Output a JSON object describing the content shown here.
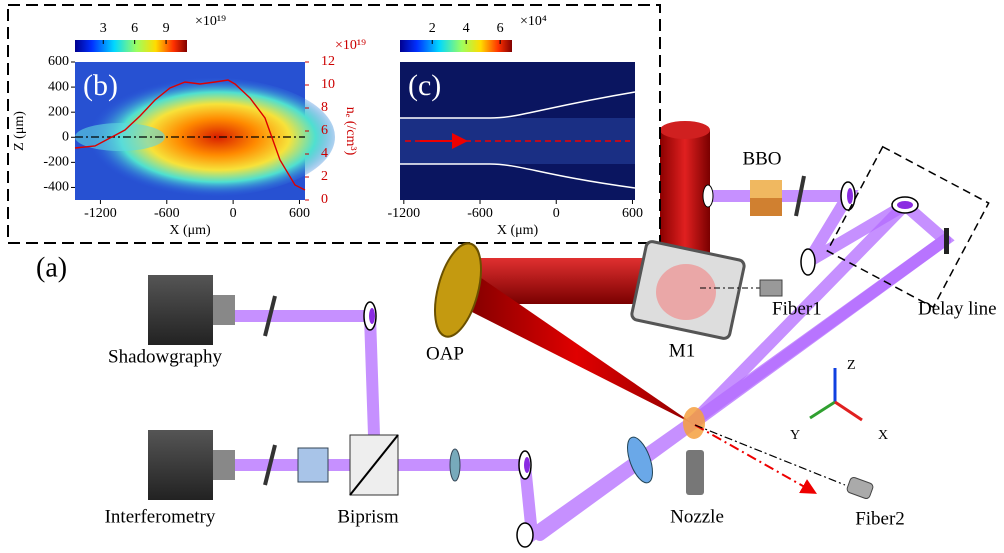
{
  "panel_b": {
    "label": "(b)",
    "colorbar": {
      "lim": [
        0.3,
        11
      ],
      "ticks": [
        3,
        6,
        9
      ],
      "unit": "×10¹⁹"
    },
    "x_label": "X (μm)",
    "xlim": [
      -1430,
      650
    ],
    "xticks": [
      -1200,
      -600,
      0,
      600
    ],
    "y_label": "Z (μm)",
    "ylim": [
      -500,
      600
    ],
    "yticks": [
      600,
      400,
      200,
      0,
      -200,
      -400
    ],
    "y2_label": "nₑ (/cm³)",
    "y2_unit": "×10¹⁹",
    "y2lim": [
      0,
      12
    ],
    "y2ticks": [
      12,
      10,
      8,
      6,
      4,
      2,
      0
    ]
  },
  "panel_c": {
    "label": "(c)",
    "colorbar": {
      "lim": [
        0.1,
        6.7
      ],
      "ticks": [
        2,
        4,
        6
      ],
      "unit": "×10⁴"
    },
    "x_label": "X (μm)",
    "xlim": [
      -1230,
      620
    ],
    "xticks": [
      -1200,
      -600,
      0,
      600
    ]
  },
  "panel_a": {
    "label": "(a)",
    "components": [
      "Shadowgraphy",
      "Interferometry",
      "Biprism",
      "OAP",
      "M1",
      "Fiber1",
      "BBO",
      "Delay line",
      "Nozzle",
      "Fiber2"
    ],
    "axes": [
      "Z",
      "Y",
      "X"
    ]
  }
}
